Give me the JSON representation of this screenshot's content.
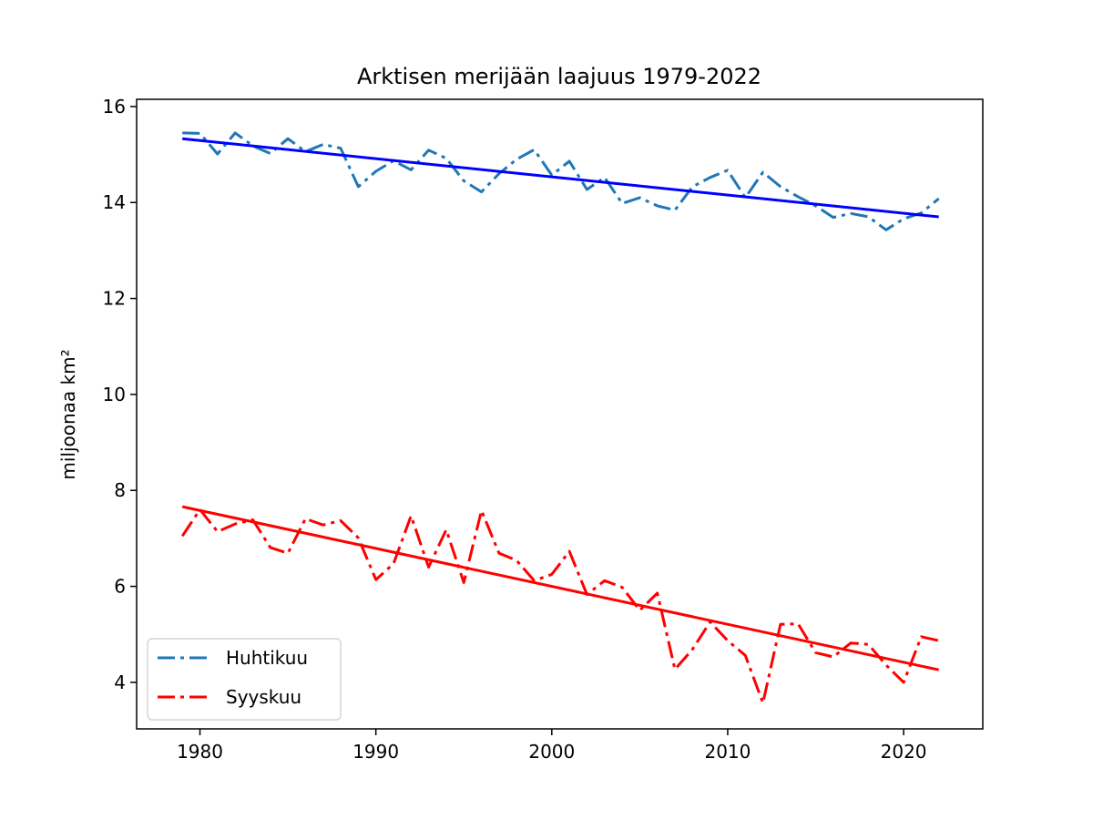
{
  "chart_data": {
    "type": "line",
    "title": "Arktisen merijään laajuus 1979-2022",
    "xlabel": "",
    "ylabel": "miljoonaa km²",
    "xlim": [
      1976.4,
      2024.5
    ],
    "ylim": [
      3.03,
      16.15
    ],
    "xticks": [
      1980,
      1990,
      2000,
      2010,
      2020
    ],
    "yticks": [
      4,
      6,
      8,
      10,
      12,
      14,
      16
    ],
    "grid": false,
    "legend_position": "lower-left",
    "x": [
      1979,
      1980,
      1981,
      1982,
      1983,
      1984,
      1985,
      1986,
      1987,
      1988,
      1989,
      1990,
      1991,
      1992,
      1993,
      1994,
      1995,
      1996,
      1997,
      1998,
      1999,
      2000,
      2001,
      2002,
      2003,
      2004,
      2005,
      2006,
      2007,
      2008,
      2009,
      2010,
      2011,
      2012,
      2013,
      2014,
      2015,
      2016,
      2017,
      2018,
      2019,
      2020,
      2021,
      2022
    ],
    "series": [
      {
        "name": "Huhtikuu",
        "color": "#1f77b4",
        "linestyle": "dashdot",
        "values": [
          15.45,
          15.44,
          15.01,
          15.45,
          15.18,
          15.02,
          15.33,
          15.06,
          15.21,
          15.13,
          14.33,
          14.65,
          14.87,
          14.68,
          15.09,
          14.92,
          14.45,
          14.22,
          14.6,
          14.9,
          15.1,
          14.57,
          14.86,
          14.27,
          14.52,
          13.98,
          14.1,
          13.93,
          13.84,
          14.33,
          14.52,
          14.67,
          14.1,
          14.63,
          14.33,
          14.12,
          13.93,
          13.69,
          13.77,
          13.7,
          13.43,
          13.66,
          13.78,
          14.08
        ]
      },
      {
        "name": "Syyskuu",
        "color": "#ff0000",
        "linestyle": "dashdot",
        "values": [
          7.05,
          7.6,
          7.14,
          7.3,
          7.39,
          6.81,
          6.69,
          7.41,
          7.28,
          7.37,
          7.01,
          6.14,
          6.47,
          7.47,
          6.4,
          7.18,
          6.08,
          7.58,
          6.69,
          6.54,
          6.12,
          6.25,
          6.73,
          5.83,
          6.12,
          5.98,
          5.5,
          5.86,
          4.27,
          4.69,
          5.26,
          4.87,
          4.56,
          3.57,
          5.21,
          5.22,
          4.62,
          4.53,
          4.82,
          4.79,
          4.36,
          4.0,
          4.95,
          4.87
        ]
      },
      {
        "name": "",
        "kind": "trend",
        "color": "#0000ff",
        "linestyle": "solid",
        "x": [
          1979,
          2022
        ],
        "values": [
          15.33,
          13.7
        ]
      },
      {
        "name": "",
        "kind": "trend",
        "color": "#ff0000",
        "linestyle": "solid",
        "x": [
          1979,
          2022
        ],
        "values": [
          7.66,
          4.26
        ]
      }
    ]
  }
}
